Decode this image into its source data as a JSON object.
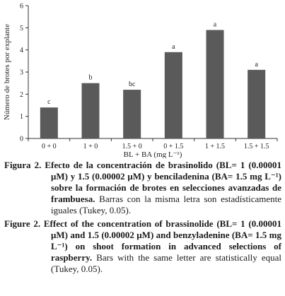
{
  "chart_data": {
    "type": "bar",
    "categories": [
      "0 + 0",
      "1 + 0",
      "1.5 + 0",
      "0 + 1.5",
      "1 + 1.5",
      "1.5 + 1.5"
    ],
    "values": [
      1.4,
      2.5,
      2.2,
      3.9,
      4.9,
      3.1
    ],
    "significance_letters": [
      "c",
      "b",
      "bc",
      "a",
      "a",
      "a"
    ],
    "xlabel": "BL + BA (mg L⁻¹)",
    "ylabel": "Número de brotes por explante",
    "ylim": [
      0,
      6
    ],
    "yticks": [
      "0",
      "1",
      "2",
      "3",
      "4",
      "5",
      "6"
    ],
    "bar_color": "#5a5a5a",
    "grid": false
  },
  "captions": [
    {
      "label": "Figura 2.",
      "bold_text": "Efecto de la concentración de brasinolido (BL= 1 (0.00001 μM) y 1.5 (0.00002 μM) y benciladenina (BA= 1.5 mg L⁻¹) sobre la formación de brotes en selecciones avanzadas de frambuesa.",
      "plain_text": "Barras con la misma letra son estadísticamente iguales (Tukey, 0.05)."
    },
    {
      "label": "Figure 2.",
      "bold_text": "Effect of the concentration of brassinolide (BL= 1 (0.00001 μM) and 1.5 (0.00002 μM) and benzyladenine (BA= 1.5 mg L⁻¹) on shoot formation in advanced selections of raspberry.",
      "plain_text": "Bars with the same letter are statistically equal (Tukey, 0.05)."
    }
  ]
}
